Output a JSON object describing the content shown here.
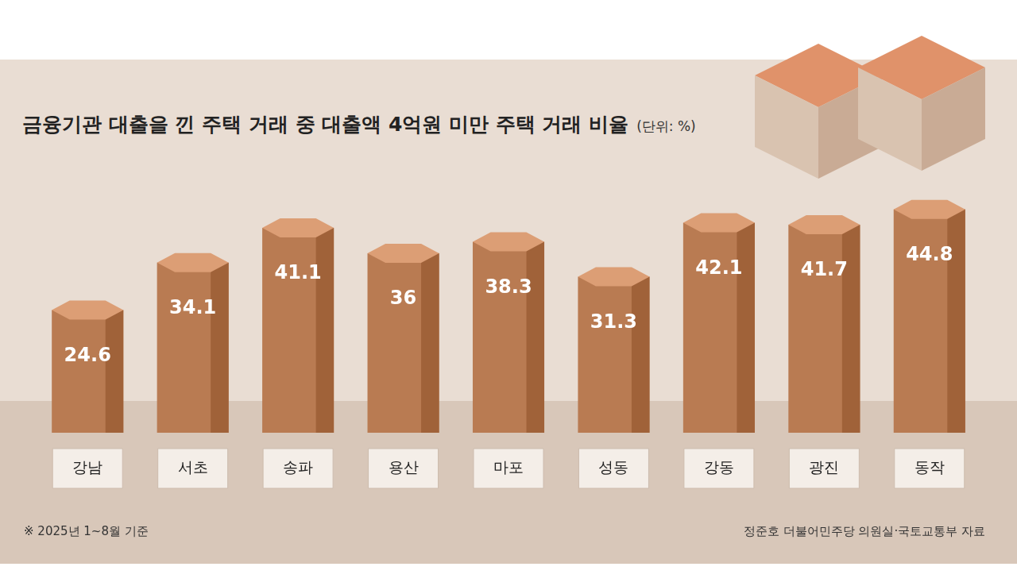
{
  "chart_data": {
    "type": "bar",
    "title": "금융기관 대출을 낀 주택 거래 중 대출액 4억원 미만 주택 거래 비율",
    "subtitle": "(단위: %)",
    "annotations": [
      "※ 2025년 1~8월 기준",
      "정준호 더불어민주당 의원실·국토교통부 자료"
    ],
    "categories": [
      "강남",
      "서초",
      "송파",
      "용산",
      "마포",
      "성동",
      "강동",
      "광진",
      "동작"
    ],
    "values": [
      24.6,
      34.1,
      41.1,
      36,
      38.3,
      31.3,
      42.1,
      41.7,
      44.8
    ],
    "color": "#b97b52",
    "ylim": [
      0,
      50
    ],
    "grid": false,
    "data_labels": true,
    "tick_labels": "x"
  }
}
